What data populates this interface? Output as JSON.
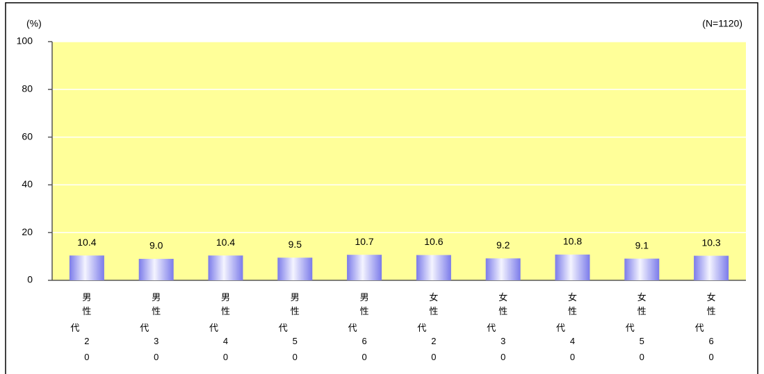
{
  "chart_data": {
    "type": "bar",
    "y_label": "(%)",
    "annotation": "(N=1120)",
    "categories": [
      "男性20代",
      "男性30代",
      "男性40代",
      "男性50代",
      "男性60代",
      "女性20代",
      "女性30代",
      "女性40代",
      "女性50代",
      "女性60代"
    ],
    "values": [
      10.4,
      9.0,
      10.4,
      9.5,
      10.7,
      10.6,
      9.2,
      10.8,
      9.1,
      10.3
    ],
    "value_labels": [
      "10.4",
      "9.0",
      "10.4",
      "9.5",
      "10.7",
      "10.6",
      "9.2",
      "10.8",
      "9.1",
      "10.3"
    ],
    "color": "#8a8af0",
    "plot_background": "#ffff99",
    "ylim": [
      0,
      100
    ],
    "yticks": [
      0,
      20,
      40,
      60,
      80,
      100
    ],
    "grid": true
  }
}
